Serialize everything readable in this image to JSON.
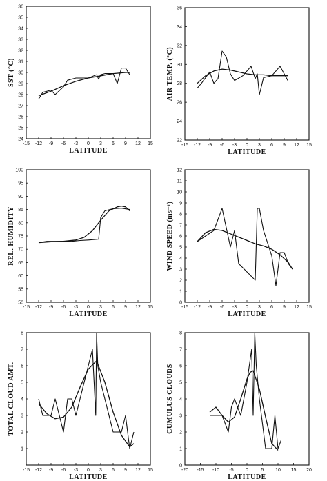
{
  "chart_data": [
    {
      "id": "sst",
      "type": "line",
      "title": "",
      "xlabel": "LATITUDE",
      "ylabel": "SST (°C)",
      "xlim": [
        -15,
        15
      ],
      "ylim": [
        24,
        36
      ],
      "xticks": [
        -15,
        -12,
        -9,
        -6,
        -3,
        0,
        3,
        6,
        9,
        12,
        15
      ],
      "yticks": [
        24,
        25,
        26,
        27,
        28,
        29,
        30,
        31,
        32,
        33,
        34,
        35,
        36
      ],
      "grid": false,
      "series": [
        {
          "role": "observed",
          "x": [
            -12,
            -11,
            -9,
            -8,
            -6,
            -5,
            -3,
            0,
            2,
            2.5,
            3,
            4,
            6,
            7,
            8,
            9,
            10
          ],
          "y": [
            27.6,
            28.2,
            28.4,
            28.0,
            28.7,
            29.3,
            29.5,
            29.5,
            29.8,
            29.4,
            29.8,
            29.9,
            29.9,
            29.0,
            30.4,
            30.4,
            29.8
          ]
        },
        {
          "role": "fitted",
          "x": [
            -12,
            -9,
            -6,
            -3,
            0,
            3,
            6,
            9,
            10
          ],
          "y": [
            27.9,
            28.3,
            28.8,
            29.2,
            29.5,
            29.7,
            29.9,
            30.0,
            30.0
          ]
        }
      ]
    },
    {
      "id": "air-temp",
      "type": "line",
      "title": "",
      "xlabel": "LATITUDE",
      "ylabel": "AIR TEMP. (°C)",
      "xlim": [
        -15,
        15
      ],
      "ylim": [
        22,
        36
      ],
      "xticks": [
        -15,
        -12,
        -9,
        -6,
        -3,
        0,
        3,
        6,
        9,
        12,
        15
      ],
      "yticks": [
        22,
        24,
        26,
        28,
        30,
        32,
        34,
        36
      ],
      "grid": false,
      "series": [
        {
          "role": "observed",
          "x": [
            -12,
            -11,
            -9,
            -8,
            -7,
            -6,
            -5,
            -4,
            -3,
            -1,
            1,
            2,
            2.5,
            3,
            4,
            6,
            8,
            10
          ],
          "y": [
            27.5,
            28.0,
            29.2,
            28.0,
            28.5,
            31.4,
            30.8,
            29.0,
            28.3,
            28.8,
            29.8,
            28.5,
            29.0,
            26.8,
            28.6,
            28.8,
            29.8,
            28.2
          ]
        },
        {
          "role": "fitted",
          "x": [
            -12,
            -10,
            -8,
            -6,
            -4,
            -2,
            0,
            2,
            4,
            6,
            8,
            10
          ],
          "y": [
            28.0,
            28.8,
            29.3,
            29.5,
            29.4,
            29.2,
            29.0,
            28.9,
            28.9,
            28.8,
            28.8,
            28.8
          ]
        }
      ]
    },
    {
      "id": "rel-humidity",
      "type": "line",
      "title": "",
      "xlabel": "LATITUDE",
      "ylabel": "REL. HUMIDITY",
      "xlim": [
        -15,
        15
      ],
      "ylim": [
        50,
        100
      ],
      "xticks": [
        -15,
        -12,
        -9,
        -6,
        -3,
        0,
        3,
        6,
        9,
        12,
        15
      ],
      "yticks": [
        50,
        55,
        60,
        65,
        70,
        75,
        80,
        85,
        90,
        95,
        100
      ],
      "grid": false,
      "series": [
        {
          "role": "observed",
          "x": [
            -12,
            -10,
            -7,
            -4,
            -2,
            0,
            2.5,
            3,
            4,
            6,
            8,
            10
          ],
          "y": [
            72.5,
            73.0,
            73.0,
            73.0,
            73.3,
            73.5,
            73.8,
            82.0,
            84.5,
            85.3,
            85.5,
            85.0
          ]
        },
        {
          "role": "fitted",
          "x": [
            -12,
            -9,
            -6,
            -3,
            -1,
            1,
            3,
            5,
            7,
            8,
            9,
            10
          ],
          "y": [
            72.5,
            72.8,
            73.0,
            73.5,
            74.5,
            77.0,
            81.0,
            84.5,
            86.0,
            86.3,
            86.0,
            84.5
          ]
        }
      ]
    },
    {
      "id": "wind-speed",
      "type": "line",
      "title": "",
      "xlabel": "LATITUDE",
      "ylabel": "WIND SPEED (ms⁻¹)",
      "xlim": [
        -15,
        15
      ],
      "ylim": [
        0,
        12
      ],
      "xticks": [
        -15,
        -12,
        -9,
        -6,
        -3,
        0,
        3,
        6,
        9,
        12,
        15
      ],
      "yticks": [
        0,
        1,
        2,
        3,
        4,
        5,
        6,
        7,
        8,
        9,
        10,
        11,
        12
      ],
      "grid": false,
      "series": [
        {
          "role": "observed",
          "x": [
            -12,
            -10,
            -8,
            -6,
            -4,
            -3,
            -2,
            2,
            2.5,
            3,
            4,
            6,
            7,
            8,
            9,
            10,
            11
          ],
          "y": [
            5.5,
            6.0,
            6.5,
            8.5,
            5.0,
            6.5,
            3.5,
            2.0,
            8.5,
            8.5,
            6.5,
            4.2,
            1.5,
            4.5,
            4.5,
            3.5,
            3.0
          ]
        },
        {
          "role": "fitted",
          "x": [
            -12,
            -10,
            -8,
            -6,
            -4,
            -2,
            0,
            2,
            4,
            6,
            8,
            10,
            11
          ],
          "y": [
            5.5,
            6.3,
            6.6,
            6.5,
            6.2,
            5.9,
            5.6,
            5.3,
            5.1,
            4.8,
            4.3,
            3.6,
            3.0
          ]
        }
      ]
    },
    {
      "id": "total-cloud",
      "type": "line",
      "title": "",
      "xlabel": "LATITUDE",
      "ylabel": "TOTAL CLOUD AMT.",
      "xlim": [
        -15,
        15
      ],
      "ylim": [
        0,
        8
      ],
      "xticks": [
        -15,
        -12,
        -9,
        -6,
        -3,
        0,
        3,
        6,
        9,
        12,
        15
      ],
      "yticks": [
        1,
        2,
        3,
        4,
        5,
        6,
        7,
        8
      ],
      "grid": false,
      "series": [
        {
          "role": "observed",
          "x": [
            -12,
            -11,
            -9,
            -8,
            -6,
            -5,
            -4,
            -3,
            1,
            1.8,
            2,
            2.3,
            3,
            4,
            6,
            8,
            9,
            10,
            11
          ],
          "y": [
            4.0,
            3.0,
            3.0,
            4.0,
            2.0,
            4.0,
            4.0,
            3.0,
            7.0,
            3.0,
            8.0,
            6.0,
            5.0,
            4.0,
            2.0,
            2.0,
            3.0,
            1.0,
            2.0
          ]
        },
        {
          "role": "fitted",
          "x": [
            -12,
            -10,
            -8,
            -6,
            -4,
            -2,
            0,
            2,
            4,
            6,
            8,
            10,
            11
          ],
          "y": [
            3.7,
            3.1,
            2.8,
            2.9,
            3.5,
            4.7,
            5.8,
            6.3,
            5.0,
            3.2,
            1.8,
            1.1,
            1.3
          ]
        }
      ]
    },
    {
      "id": "cumulus-clouds",
      "type": "line",
      "title": "",
      "xlabel": "LATITUDE",
      "ylabel": "CUMULUS CLOUDS",
      "xlim": [
        -20,
        20
      ],
      "ylim": [
        0,
        8
      ],
      "xticks": [
        -20,
        -15,
        -10,
        -5,
        0,
        5,
        10,
        15,
        20
      ],
      "yticks": [
        0,
        1,
        2,
        3,
        4,
        5,
        6,
        7,
        8
      ],
      "grid": false,
      "series": [
        {
          "role": "observed",
          "x": [
            -12,
            -10,
            -8,
            -6,
            -5,
            -4,
            -2,
            0,
            1.5,
            2,
            2.5,
            3,
            4,
            6,
            8,
            9,
            10,
            11
          ],
          "y": [
            3.0,
            3.0,
            3.0,
            2.0,
            3.5,
            4.0,
            3.0,
            5.0,
            7.0,
            3.0,
            8.0,
            6.0,
            4.0,
            1.0,
            1.0,
            3.0,
            1.0,
            1.5
          ]
        },
        {
          "role": "fitted",
          "x": [
            -12,
            -10,
            -8,
            -6,
            -4,
            -2,
            0,
            1,
            2,
            4,
            6,
            8,
            10
          ],
          "y": [
            3.2,
            3.5,
            3.0,
            2.6,
            2.9,
            4.0,
            5.2,
            5.6,
            5.7,
            4.6,
            2.9,
            1.3,
            0.9
          ]
        }
      ]
    }
  ]
}
